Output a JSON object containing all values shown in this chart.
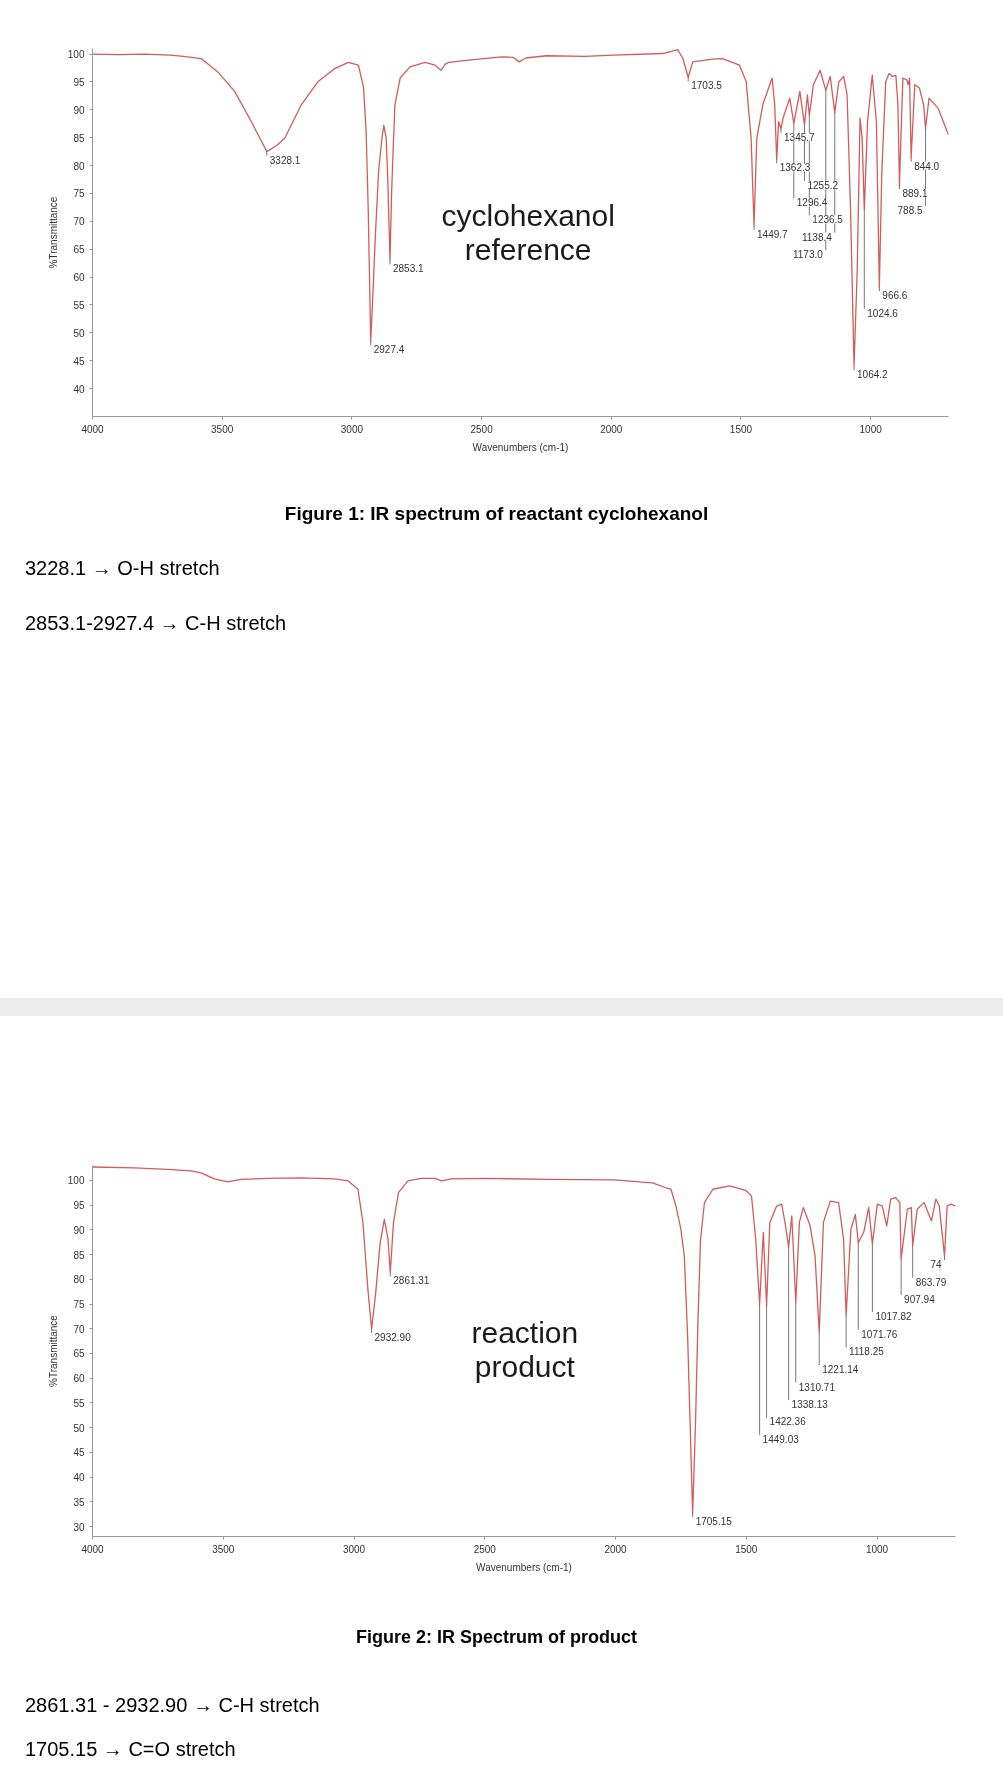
{
  "chart_data": [
    {
      "type": "line",
      "title": "Figure 1: IR spectrum of reactant cyclohexanol",
      "xlabel": "Wavenumbers (cm-1)",
      "ylabel": "%Transmittance",
      "xlim": [
        4000,
        700
      ],
      "ylim": [
        35,
        101
      ],
      "xticks": [
        4000,
        3500,
        3000,
        2500,
        2000,
        1500,
        1000
      ],
      "yticks": [
        40,
        45,
        50,
        55,
        60,
        65,
        70,
        75,
        80,
        85,
        90,
        95,
        100
      ],
      "x": [
        4000,
        3900,
        3800,
        3700,
        3650,
        3581,
        3517,
        3452,
        3388,
        3350,
        3328.1,
        3290,
        3259,
        3195,
        3130,
        3066,
        3014,
        2975,
        2955,
        2945,
        2937,
        2927.4,
        2918,
        2910,
        2897,
        2884,
        2877,
        2868,
        2862,
        2853.1,
        2847,
        2840,
        2834,
        2814,
        2776,
        2718,
        2679,
        2656,
        2640,
        2627,
        2550,
        2421,
        2378,
        2355,
        2330,
        2250,
        2100,
        1994,
        1801,
        1744,
        1724,
        1703.5,
        1686,
        1609,
        1571,
        1506,
        1480,
        1461,
        1449.7,
        1439,
        1416,
        1380,
        1370,
        1362.3,
        1355,
        1345.7,
        1338,
        1312,
        1296.4,
        1273,
        1255.2,
        1244,
        1236.5,
        1221,
        1195,
        1173.0,
        1156,
        1138.4,
        1123,
        1104,
        1091,
        1078,
        1064.2,
        1052,
        1041,
        1033,
        1024.6,
        1012,
        994,
        978,
        966.6,
        957,
        942,
        929,
        916,
        903,
        895,
        889.1,
        876,
        861,
        855,
        850,
        844.0,
        830,
        812,
        796,
        788.5,
        775,
        740,
        700
      ],
      "series": [
        {
          "color": "#d05c5c",
          "values": [
            100,
            99.9,
            100,
            99.8,
            99.6,
            99.2,
            96.8,
            93.3,
            87.9,
            84.5,
            82.5,
            83.6,
            84.9,
            90.9,
            95.1,
            97.4,
            98.5,
            98.0,
            94,
            86,
            72,
            48.5,
            58,
            67,
            79,
            85,
            87.2,
            85,
            78,
            63,
            75,
            84,
            90.9,
            95.7,
            97.7,
            98.5,
            98,
            97.1,
            98.2,
            98.5,
            98.9,
            99.5,
            99.4,
            98.6,
            99.3,
            99.7,
            99.6,
            99.8,
            100.1,
            100.8,
            99.2,
            95.8,
            98.6,
            99.1,
            99.2,
            98.0,
            95.1,
            84.9,
            69.2,
            84.9,
            90.9,
            95.7,
            90.9,
            81.1,
            87.9,
            86.6,
            88.5,
            92.1,
            87.6,
            93.3,
            87.3,
            92.7,
            89,
            94.5,
            97.1,
            93.5,
            96,
            89.5,
            95,
            96,
            92.7,
            73,
            44,
            61,
            88.5,
            85,
            72.1,
            87.9,
            96.2,
            87.9,
            58.2,
            79,
            95.1,
            96.5,
            96,
            96.2,
            90.9,
            76.5,
            95.7,
            95.4,
            94.5,
            95.7,
            81.4,
            94.5,
            93.9,
            90.9,
            86.7,
            92.1,
            90.3,
            85.5
          ]
        }
      ],
      "annotations": [
        "cyclohexanol reference",
        "3228.1 → O-H stretch",
        "2853.1-2927.4 → C-H stretch",
        {
          "text": "3328.1",
          "x": 3328.1,
          "y": 82.5
        },
        {
          "text": "2927.4",
          "x": 2927.4,
          "y": 48.5
        },
        {
          "text": "2853.1",
          "x": 2853.1,
          "y": 63
        },
        {
          "text": "1703.5",
          "x": 1703.5,
          "y": 95.8
        },
        {
          "text": "1449.7",
          "x": 1449.7,
          "y": 69.2
        },
        {
          "text": "1362.3",
          "x": 1362.3,
          "y": 81.1
        },
        {
          "text": "1345.7",
          "x": 1345.7,
          "y": 86.6
        },
        {
          "text": "1296.4",
          "x": 1296.4,
          "y": 87.6
        },
        {
          "text": "1255.2",
          "x": 1255.2,
          "y": 87.3
        },
        {
          "text": "1236.5",
          "x": 1236.5,
          "y": 89
        },
        {
          "text": "1173.0",
          "x": 1173.0,
          "y": 93.5
        },
        {
          "text": "1138.4",
          "x": 1138.4,
          "y": 89.5
        },
        {
          "text": "1064.2",
          "x": 1064.2,
          "y": 44
        },
        {
          "text": "1024.6",
          "x": 1024.6,
          "y": 72.1
        },
        {
          "text": "966.6",
          "x": 966.6,
          "y": 58.2
        },
        {
          "text": "889.1",
          "x": 889.1,
          "y": 76.5
        },
        {
          "text": "844.0",
          "x": 844.0,
          "y": 81.4
        },
        {
          "text": "788.5",
          "x": 788.5,
          "y": 86.7
        }
      ]
    },
    {
      "type": "line",
      "title": "Figure 2: IR Spectrum of product",
      "xlabel": "Wavenumbers (cm-1)",
      "ylabel": "%Transmittance",
      "xlim": [
        4000,
        700
      ],
      "ylim": [
        28,
        103
      ],
      "xticks": [
        4000,
        3500,
        3000,
        2500,
        2000,
        1500,
        1000
      ],
      "yticks": [
        30,
        35,
        40,
        45,
        50,
        55,
        60,
        65,
        70,
        75,
        80,
        85,
        90,
        95,
        100
      ],
      "x": [
        4000,
        3840,
        3713,
        3623,
        3585,
        3534,
        3483,
        3432,
        3330,
        3202,
        3074,
        3023,
        2985,
        2966,
        2947,
        2932.9,
        2918,
        2900,
        2884,
        2870,
        2861.31,
        2849,
        2830,
        2794,
        2743,
        2691,
        2666,
        2628,
        2500,
        2263,
        2006,
        1859,
        1807,
        1788,
        1769,
        1750,
        1737,
        1724,
        1715,
        1705.15,
        1694,
        1685,
        1675,
        1660,
        1628,
        1564,
        1519,
        1500,
        1480,
        1464,
        1449.03,
        1435,
        1422.36,
        1410,
        1384,
        1365,
        1352,
        1338.13,
        1326,
        1310.71,
        1297,
        1282,
        1256,
        1237,
        1221.14,
        1205,
        1179,
        1147,
        1128,
        1118.25,
        1100,
        1083,
        1071.76,
        1051,
        1032,
        1017.82,
        999,
        980,
        963,
        948,
        929,
        913,
        907.94,
        884,
        869,
        863.79,
        846,
        820,
        792,
        775,
        762,
        742,
        732,
        717,
        700
      ],
      "series": [
        {
          "color": "#d05c5c",
          "values": [
            102.7,
            102.5,
            102.2,
            101.9,
            101.5,
            100.3,
            99.7,
            100.2,
            100.4,
            100.5,
            100.3,
            99.9,
            98.2,
            91.5,
            78,
            70,
            76.7,
            87.4,
            92.1,
            88.1,
            81.4,
            91.5,
            97.5,
            99.9,
            100.4,
            100.4,
            99.9,
            100.3,
            100.4,
            100.2,
            100.1,
            99.5,
            98.5,
            98.2,
            94.8,
            90.1,
            84.7,
            68,
            51.2,
            32.7,
            51.2,
            71.3,
            88.1,
            95.5,
            98.2,
            98.9,
            98.2,
            97.9,
            96.8,
            88.1,
            75,
            89.5,
            74.7,
            91.5,
            94.8,
            95.2,
            91.5,
            86.5,
            92.8,
            75.3,
            91.5,
            94.5,
            90.8,
            84.7,
            69.3,
            91.5,
            95.8,
            95.5,
            88.1,
            72.7,
            90.1,
            93.1,
            87.4,
            89.5,
            94.5,
            87.1,
            95.2,
            94.8,
            90.8,
            96.2,
            96.5,
            95.5,
            84.1,
            94.2,
            94.5,
            86.8,
            94.2,
            95.5,
            91.8,
            96.2,
            94.8,
            84.7,
            94.8,
            95.2,
            94.8
          ]
        }
      ],
      "annotations": [
        "reaction product",
        "2861.31 - 2932.90 → C-H stretch",
        "1705.15 → C=O stretch",
        {
          "text": "2932.90",
          "x": 2932.9,
          "y": 70
        },
        {
          "text": "2861.31",
          "x": 2861.31,
          "y": 81.4
        },
        {
          "text": "1705.15",
          "x": 1705.15,
          "y": 32.7
        },
        {
          "text": "1449.03",
          "x": 1449.03,
          "y": 75
        },
        {
          "text": "1422.36",
          "x": 1422.36,
          "y": 74.7
        },
        {
          "text": "1338.13",
          "x": 1338.13,
          "y": 86.5
        },
        {
          "text": "1310.71",
          "x": 1310.71,
          "y": 75.3
        },
        {
          "text": "1221.14",
          "x": 1221.14,
          "y": 69.3
        },
        {
          "text": "1118.25",
          "x": 1118.25,
          "y": 72.7
        },
        {
          "text": "1071.76",
          "x": 1071.76,
          "y": 87.4
        },
        {
          "text": "1017.82",
          "x": 1017.82,
          "y": 87.1
        },
        {
          "text": "907.94",
          "x": 907.94,
          "y": 84.1
        },
        {
          "text": "863.79",
          "x": 863.79,
          "y": 86.8
        },
        {
          "text": "74",
          "x": 742,
          "y": 84.7
        }
      ]
    }
  ]
}
